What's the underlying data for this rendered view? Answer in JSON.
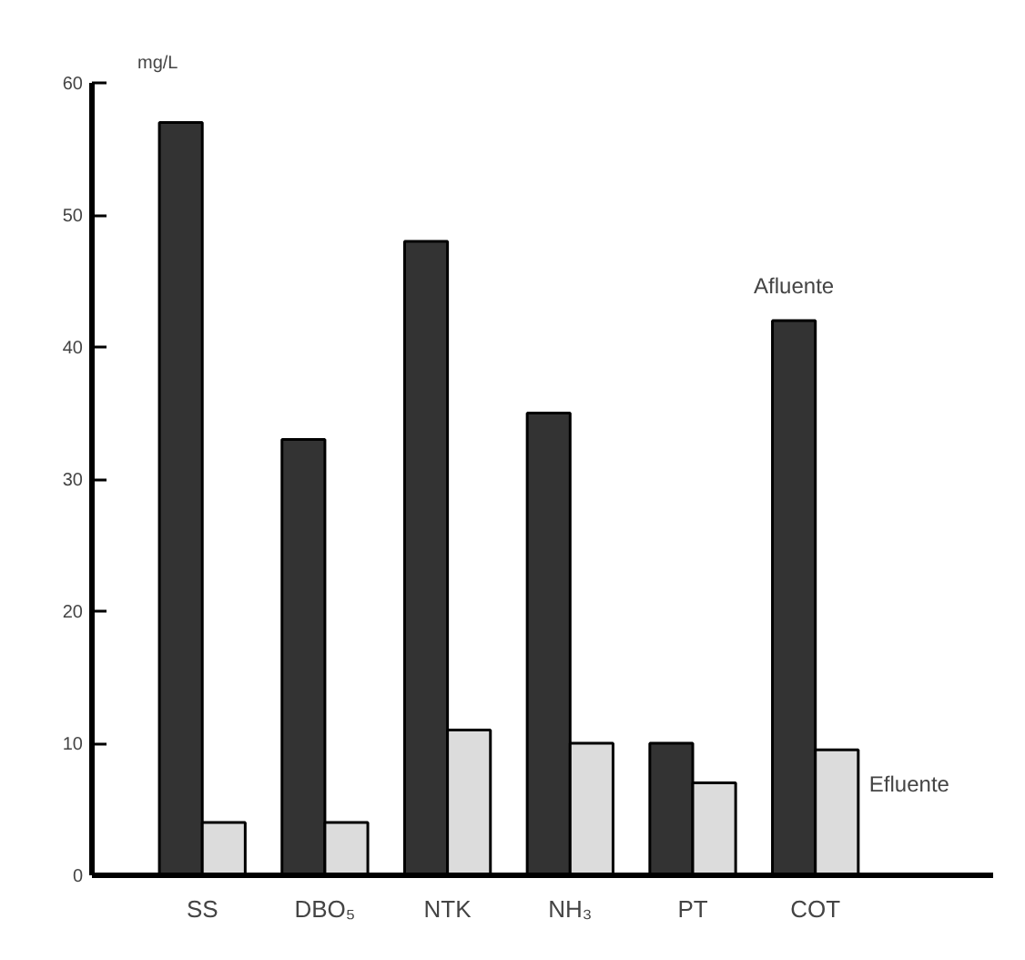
{
  "chart_data": {
    "type": "bar",
    "ylabel": "mg/L",
    "categories": [
      "SS",
      "DBO₅",
      "NTK",
      "NH₃",
      "PT",
      "COT"
    ],
    "series": [
      {
        "name": "Afluente",
        "color": "#333333",
        "values": [
          57,
          33,
          48,
          35,
          10,
          42
        ]
      },
      {
        "name": "Efluente",
        "color": "#dcdcdc",
        "values": [
          4,
          4,
          11,
          10,
          7,
          9.5
        ]
      }
    ],
    "ylim": [
      0,
      60
    ],
    "yticks": [
      0,
      10,
      20,
      30,
      40,
      50,
      60
    ],
    "grid": false
  }
}
